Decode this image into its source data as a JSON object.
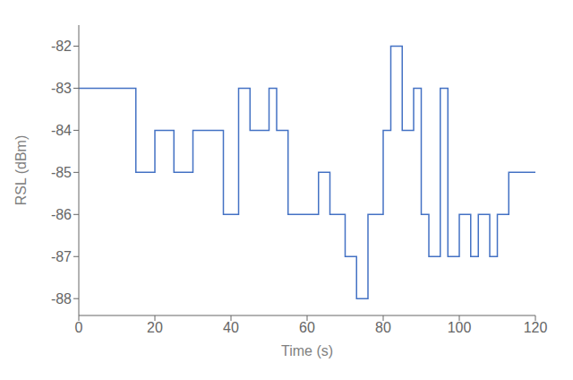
{
  "chart_data": {
    "type": "line",
    "x": [
      0,
      15,
      15,
      20,
      20,
      25,
      25,
      30,
      30,
      38,
      38,
      42,
      42,
      45,
      45,
      50,
      50,
      52,
      52,
      55,
      55,
      58,
      58,
      63,
      63,
      66,
      66,
      70,
      70,
      73,
      73,
      76,
      76,
      80,
      80,
      82,
      82,
      85,
      85,
      88,
      88,
      90,
      90,
      92,
      92,
      95,
      95,
      97,
      97,
      100,
      100,
      103,
      103,
      105,
      105,
      108,
      108,
      110,
      110,
      113,
      113,
      120
    ],
    "values": [
      -83,
      -83,
      -85,
      -85,
      -84,
      -84,
      -85,
      -85,
      -84,
      -84,
      -86,
      -86,
      -83,
      -83,
      -84,
      -84,
      -83,
      -83,
      -84,
      -84,
      -86,
      -86,
      -86,
      -86,
      -85,
      -85,
      -86,
      -86,
      -87,
      -87,
      -88,
      -88,
      -86,
      -86,
      -84,
      -84,
      -82,
      -82,
      -84,
      -84,
      -83,
      -83,
      -86,
      -86,
      -87,
      -87,
      -83,
      -83,
      -87,
      -87,
      -86,
      -86,
      -87,
      -87,
      -86,
      -86,
      -87,
      -87,
      -86,
      -86,
      -85,
      -85
    ],
    "xlabel": "Time (s)",
    "ylabel": "RSL (dBm)",
    "xlim": [
      0,
      120
    ],
    "ylim": [
      -88.4,
      -81.5
    ],
    "xticks": [
      0,
      20,
      40,
      60,
      80,
      100,
      120
    ],
    "yticks": [
      -88,
      -87,
      -86,
      -85,
      -84,
      -83,
      -82
    ],
    "color": "#4472c4",
    "grid": false
  }
}
